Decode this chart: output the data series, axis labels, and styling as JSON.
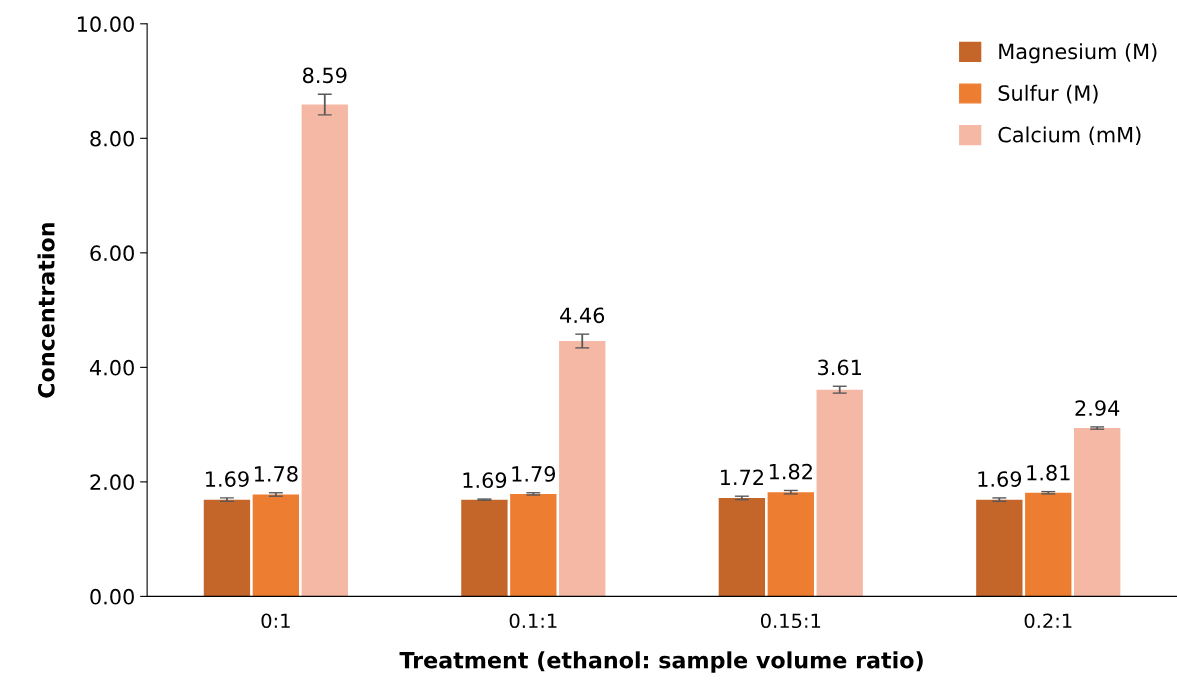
{
  "chart_data": {
    "type": "bar",
    "xlabel": "Treatment (ethanol: sample volume ratio)",
    "ylabel": "Concentration",
    "categories": [
      "0:1",
      "0.1:1",
      "0.15:1",
      "0.2:1"
    ],
    "series": [
      {
        "name": "Magnesium (M)",
        "color": "#c4652a",
        "values": [
          1.69,
          1.69,
          1.72,
          1.69
        ],
        "errors": [
          0.03,
          0.01,
          0.03,
          0.03
        ]
      },
      {
        "name": "Sulfur (M)",
        "color": "#ed7d31",
        "values": [
          1.78,
          1.79,
          1.82,
          1.81
        ],
        "errors": [
          0.03,
          0.02,
          0.03,
          0.02
        ]
      },
      {
        "name": "Calcium (mM)",
        "color": "#f4b8a4",
        "values": [
          8.59,
          4.46,
          3.61,
          2.94
        ],
        "errors": [
          0.18,
          0.12,
          0.06,
          0.02
        ]
      }
    ],
    "ylim": [
      0,
      10
    ],
    "yticks": [
      {
        "value": 0,
        "label": "0.00"
      },
      {
        "value": 2,
        "label": "2.00"
      },
      {
        "value": 4,
        "label": "4.00"
      },
      {
        "value": 6,
        "label": "6.00"
      },
      {
        "value": 8,
        "label": "8.00"
      },
      {
        "value": 10,
        "label": "10.00"
      }
    ],
    "data_labels": true,
    "legend": "top right",
    "grid": false
  }
}
